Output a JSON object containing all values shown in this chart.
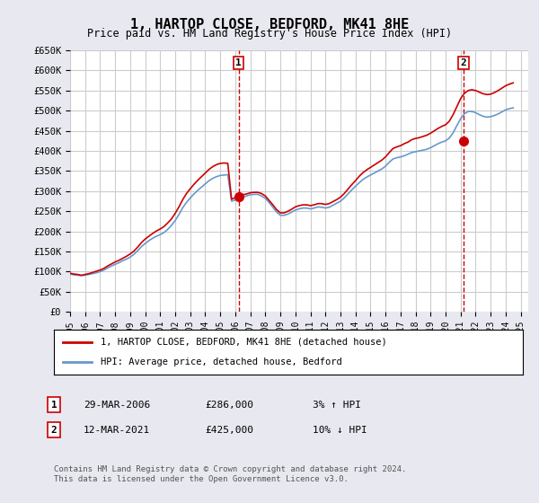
{
  "title": "1, HARTOP CLOSE, BEDFORD, MK41 8HE",
  "subtitle": "Price paid vs. HM Land Registry's House Price Index (HPI)",
  "ylim": [
    0,
    650000
  ],
  "yticks": [
    0,
    50000,
    100000,
    150000,
    200000,
    250000,
    300000,
    350000,
    400000,
    450000,
    500000,
    550000,
    600000,
    650000
  ],
  "ytick_labels": [
    "£0",
    "£50K",
    "£100K",
    "£150K",
    "£200K",
    "£250K",
    "£300K",
    "£350K",
    "£400K",
    "£450K",
    "£500K",
    "£550K",
    "£600K",
    "£650K"
  ],
  "xlim_start": 1995.0,
  "xlim_end": 2025.5,
  "xtick_years": [
    1995,
    1996,
    1997,
    1998,
    1999,
    2000,
    2001,
    2002,
    2003,
    2004,
    2005,
    2006,
    2007,
    2008,
    2009,
    2010,
    2011,
    2012,
    2013,
    2014,
    2015,
    2016,
    2017,
    2018,
    2019,
    2020,
    2021,
    2022,
    2023,
    2024,
    2025
  ],
  "line1_color": "#cc0000",
  "line2_color": "#6699cc",
  "grid_color": "#cccccc",
  "bg_color": "#e8e8f0",
  "plot_bg_color": "#ffffff",
  "sale1_x": 2006.23,
  "sale1_y": 286000,
  "sale1_label": "1",
  "sale2_x": 2021.19,
  "sale2_y": 425000,
  "sale2_label": "2",
  "legend_line1": "1, HARTOP CLOSE, BEDFORD, MK41 8HE (detached house)",
  "legend_line2": "HPI: Average price, detached house, Bedford",
  "table_rows": [
    {
      "num": "1",
      "date": "29-MAR-2006",
      "price": "£286,000",
      "hpi": "3% ↑ HPI"
    },
    {
      "num": "2",
      "date": "12-MAR-2021",
      "price": "£425,000",
      "hpi": "10% ↓ HPI"
    }
  ],
  "footnote": "Contains HM Land Registry data © Crown copyright and database right 2024.\nThis data is licensed under the Open Government Licence v3.0.",
  "hpi_data_x": [
    1995.0,
    1995.25,
    1995.5,
    1995.75,
    1996.0,
    1996.25,
    1996.5,
    1996.75,
    1997.0,
    1997.25,
    1997.5,
    1997.75,
    1998.0,
    1998.25,
    1998.5,
    1998.75,
    1999.0,
    1999.25,
    1999.5,
    1999.75,
    2000.0,
    2000.25,
    2000.5,
    2000.75,
    2001.0,
    2001.25,
    2001.5,
    2001.75,
    2002.0,
    2002.25,
    2002.5,
    2002.75,
    2003.0,
    2003.25,
    2003.5,
    2003.75,
    2004.0,
    2004.25,
    2004.5,
    2004.75,
    2005.0,
    2005.25,
    2005.5,
    2005.75,
    2006.0,
    2006.25,
    2006.5,
    2006.75,
    2007.0,
    2007.25,
    2007.5,
    2007.75,
    2008.0,
    2008.25,
    2008.5,
    2008.75,
    2009.0,
    2009.25,
    2009.5,
    2009.75,
    2010.0,
    2010.25,
    2010.5,
    2010.75,
    2011.0,
    2011.25,
    2011.5,
    2011.75,
    2012.0,
    2012.25,
    2012.5,
    2012.75,
    2013.0,
    2013.25,
    2013.5,
    2013.75,
    2014.0,
    2014.25,
    2014.5,
    2014.75,
    2015.0,
    2015.25,
    2015.5,
    2015.75,
    2016.0,
    2016.25,
    2016.5,
    2016.75,
    2017.0,
    2017.25,
    2017.5,
    2017.75,
    2018.0,
    2018.25,
    2018.5,
    2018.75,
    2019.0,
    2019.25,
    2019.5,
    2019.75,
    2020.0,
    2020.25,
    2020.5,
    2020.75,
    2021.0,
    2021.25,
    2021.5,
    2021.75,
    2022.0,
    2022.25,
    2022.5,
    2022.75,
    2023.0,
    2023.25,
    2023.5,
    2023.75,
    2024.0,
    2024.25,
    2024.5
  ],
  "hpi_data_y": [
    94000,
    92000,
    91000,
    90000,
    91000,
    93000,
    95000,
    97000,
    100000,
    104000,
    109000,
    114000,
    118000,
    122000,
    127000,
    131000,
    136000,
    143000,
    152000,
    162000,
    170000,
    177000,
    183000,
    188000,
    192000,
    197000,
    205000,
    215000,
    227000,
    242000,
    259000,
    272000,
    283000,
    293000,
    302000,
    310000,
    318000,
    326000,
    332000,
    336000,
    339000,
    340000,
    341000,
    275000,
    278000,
    282000,
    285000,
    288000,
    291000,
    292000,
    292000,
    288000,
    282000,
    272000,
    260000,
    248000,
    240000,
    240000,
    243000,
    248000,
    253000,
    256000,
    258000,
    258000,
    256000,
    258000,
    261000,
    260000,
    258000,
    260000,
    265000,
    270000,
    275000,
    283000,
    293000,
    303000,
    312000,
    321000,
    329000,
    335000,
    340000,
    345000,
    350000,
    355000,
    362000,
    372000,
    380000,
    383000,
    385000,
    388000,
    392000,
    396000,
    398000,
    400000,
    402000,
    404000,
    408000,
    413000,
    418000,
    422000,
    425000,
    432000,
    445000,
    463000,
    480000,
    492000,
    498000,
    498000,
    495000,
    490000,
    486000,
    484000,
    485000,
    488000,
    492000,
    497000,
    502000,
    505000,
    507000
  ],
  "red_data_x": [
    1995.0,
    1995.25,
    1995.5,
    1995.75,
    1996.0,
    1996.25,
    1996.5,
    1996.75,
    1997.0,
    1997.25,
    1997.5,
    1997.75,
    1998.0,
    1998.25,
    1998.5,
    1998.75,
    1999.0,
    1999.25,
    1999.5,
    1999.75,
    2000.0,
    2000.25,
    2000.5,
    2000.75,
    2001.0,
    2001.25,
    2001.5,
    2001.75,
    2002.0,
    2002.25,
    2002.5,
    2002.75,
    2003.0,
    2003.25,
    2003.5,
    2003.75,
    2004.0,
    2004.25,
    2004.5,
    2004.75,
    2005.0,
    2005.25,
    2005.5,
    2005.75,
    2006.0,
    2006.25,
    2006.5,
    2006.75,
    2007.0,
    2007.25,
    2007.5,
    2007.75,
    2008.0,
    2008.25,
    2008.5,
    2008.75,
    2009.0,
    2009.25,
    2009.5,
    2009.75,
    2010.0,
    2010.25,
    2010.5,
    2010.75,
    2011.0,
    2011.25,
    2011.5,
    2011.75,
    2012.0,
    2012.25,
    2012.5,
    2012.75,
    2013.0,
    2013.25,
    2013.5,
    2013.75,
    2014.0,
    2014.25,
    2014.5,
    2014.75,
    2015.0,
    2015.25,
    2015.5,
    2015.75,
    2016.0,
    2016.25,
    2016.5,
    2016.75,
    2017.0,
    2017.25,
    2017.5,
    2017.75,
    2018.0,
    2018.25,
    2018.5,
    2018.75,
    2019.0,
    2019.25,
    2019.5,
    2019.75,
    2020.0,
    2020.25,
    2020.5,
    2020.75,
    2021.0,
    2021.25,
    2021.5,
    2021.75,
    2022.0,
    2022.25,
    2022.5,
    2022.75,
    2023.0,
    2023.25,
    2023.5,
    2023.75,
    2024.0,
    2024.25,
    2024.5
  ],
  "red_data_y": [
    96000,
    94000,
    93000,
    91000,
    93000,
    95000,
    98000,
    101000,
    104000,
    108000,
    114000,
    119000,
    124000,
    128000,
    133000,
    138000,
    144000,
    151000,
    161000,
    172000,
    181000,
    188000,
    195000,
    201000,
    206000,
    212000,
    221000,
    231000,
    245000,
    261000,
    279000,
    294000,
    306000,
    317000,
    327000,
    336000,
    345000,
    354000,
    361000,
    366000,
    369000,
    370000,
    369000,
    280000,
    284000,
    288000,
    291000,
    293000,
    296000,
    297000,
    297000,
    294000,
    288000,
    277000,
    266000,
    254000,
    246000,
    246000,
    250000,
    255000,
    261000,
    264000,
    266000,
    266000,
    264000,
    266000,
    269000,
    269000,
    267000,
    269000,
    274000,
    279000,
    285000,
    294000,
    305000,
    316000,
    326000,
    337000,
    346000,
    353000,
    359000,
    365000,
    371000,
    377000,
    385000,
    396000,
    406000,
    410000,
    413000,
    418000,
    422000,
    428000,
    431000,
    433000,
    436000,
    439000,
    444000,
    450000,
    456000,
    461000,
    465000,
    474000,
    490000,
    510000,
    530000,
    543000,
    550000,
    552000,
    550000,
    546000,
    542000,
    540000,
    541000,
    545000,
    550000,
    556000,
    562000,
    566000,
    569000
  ]
}
